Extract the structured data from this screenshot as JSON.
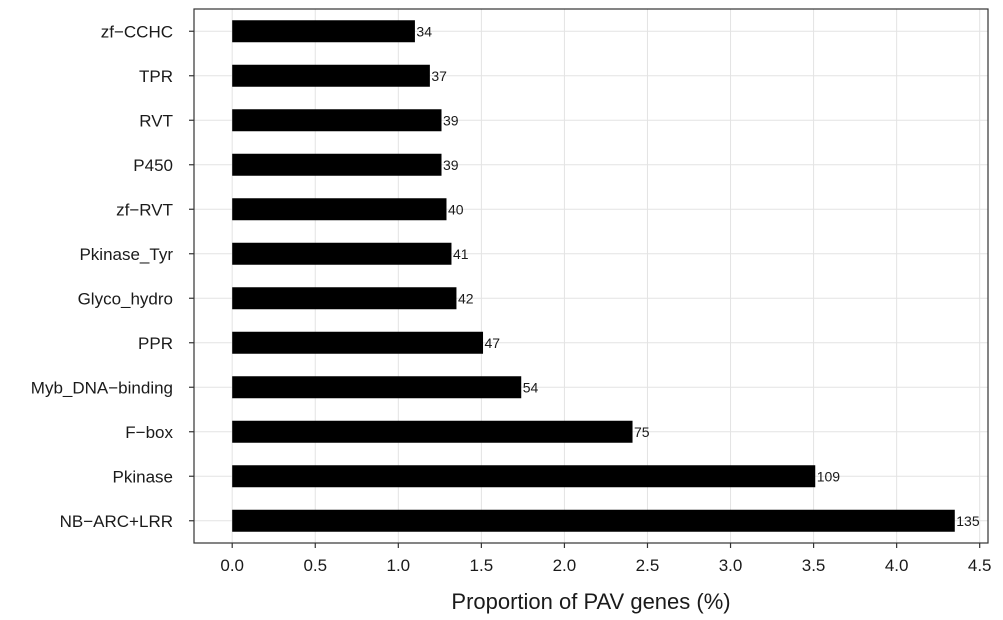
{
  "chart_data": {
    "type": "bar",
    "orientation": "horizontal",
    "categories": [
      "zf-CCHC",
      "TPR",
      "RVT",
      "P450",
      "zf-RVT",
      "Pkinase_Tyr",
      "Glyco_hydro",
      "PPR",
      "Myb_DNA-binding",
      "F-box",
      "Pkinase",
      "NB-ARC+LRR"
    ],
    "display_categories": [
      "zf−CCHC",
      "TPR",
      "RVT",
      "P450",
      "zf−RVT",
      "Pkinase_Tyr",
      "Glyco_hydro",
      "PPR",
      "Myb_DNA−binding",
      "F−box",
      "Pkinase",
      "NB−ARC+LRR"
    ],
    "values": [
      1.1,
      1.19,
      1.26,
      1.26,
      1.29,
      1.32,
      1.35,
      1.51,
      1.74,
      2.41,
      3.51,
      4.35
    ],
    "counts": [
      "34",
      "37",
      "39",
      "39",
      "40",
      "41",
      "42",
      "47",
      "54",
      "75",
      "109",
      "135"
    ],
    "xlabel": "Proportion of PAV genes (%)",
    "ylabel": "",
    "title": "",
    "xlim": [
      -0.23,
      4.55
    ],
    "xticks": [
      0.0,
      0.5,
      1.0,
      1.5,
      2.0,
      2.5,
      3.0,
      3.5,
      4.0,
      4.5
    ],
    "xtick_labels": [
      "0.0",
      "0.5",
      "1.0",
      "1.5",
      "2.0",
      "2.5",
      "3.0",
      "3.5",
      "4.0",
      "4.5"
    ],
    "grid": true,
    "legend": "none",
    "colors": {
      "bar": "#000000",
      "grid": "#e3e3e3",
      "panel_border": "#333333",
      "text": "#1a1a1a"
    }
  }
}
